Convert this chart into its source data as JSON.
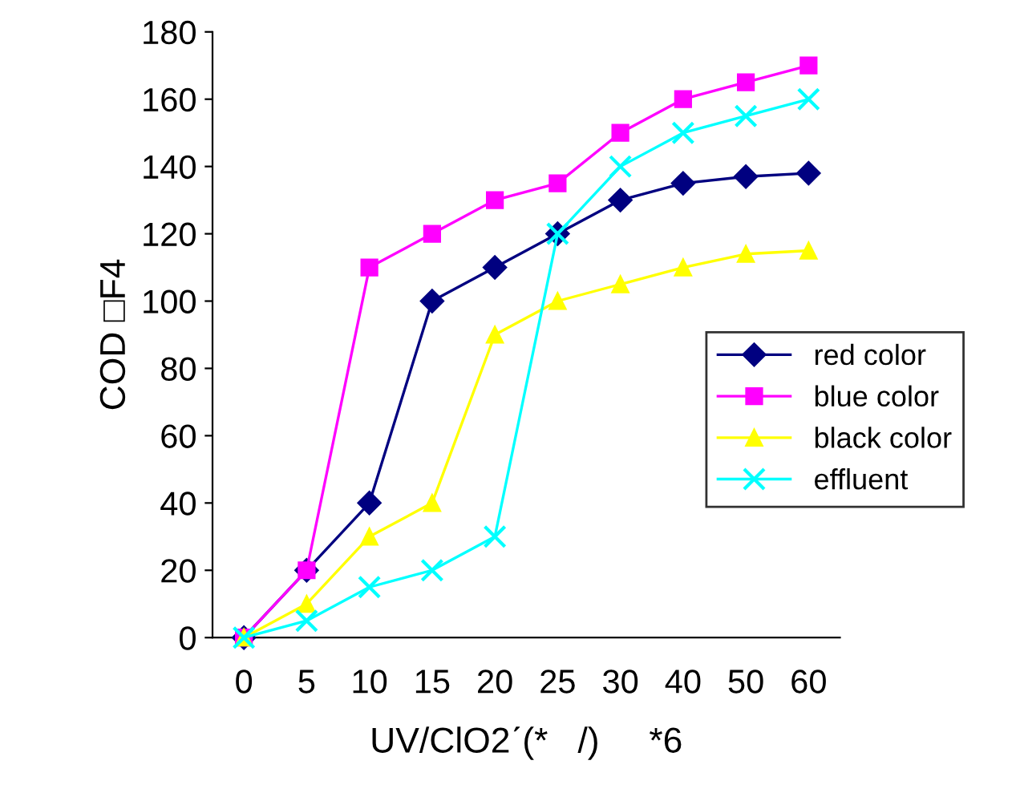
{
  "chart_data": {
    "type": "line",
    "xlabel": "UV/ClO2ˊ(*   /)     *6",
    "ylabel": "COD □F4",
    "categories": [
      "0",
      "5",
      "10",
      "15",
      "20",
      "25",
      "30",
      "40",
      "50",
      "60"
    ],
    "series": [
      {
        "name": "red color",
        "color": "#000080",
        "marker": "diamond",
        "values": [
          0,
          20,
          40,
          100,
          110,
          120,
          130,
          135,
          137,
          138
        ]
      },
      {
        "name": "blue color",
        "color": "#ff00ff",
        "marker": "square",
        "values": [
          0,
          20,
          110,
          120,
          130,
          135,
          150,
          160,
          165,
          170
        ]
      },
      {
        "name": "black color",
        "color": "#ffff00",
        "marker": "triangle",
        "values": [
          0,
          10,
          30,
          40,
          90,
          100,
          105,
          110,
          114,
          115
        ]
      },
      {
        "name": "effluent",
        "color": "#00ffff",
        "marker": "cross",
        "values": [
          0,
          5,
          15,
          20,
          30,
          120,
          140,
          150,
          155,
          160
        ]
      }
    ],
    "ylim": [
      0,
      180
    ],
    "yticks": [
      0,
      20,
      40,
      60,
      80,
      100,
      120,
      140,
      160,
      180
    ],
    "grid": false,
    "legend": "center right"
  }
}
